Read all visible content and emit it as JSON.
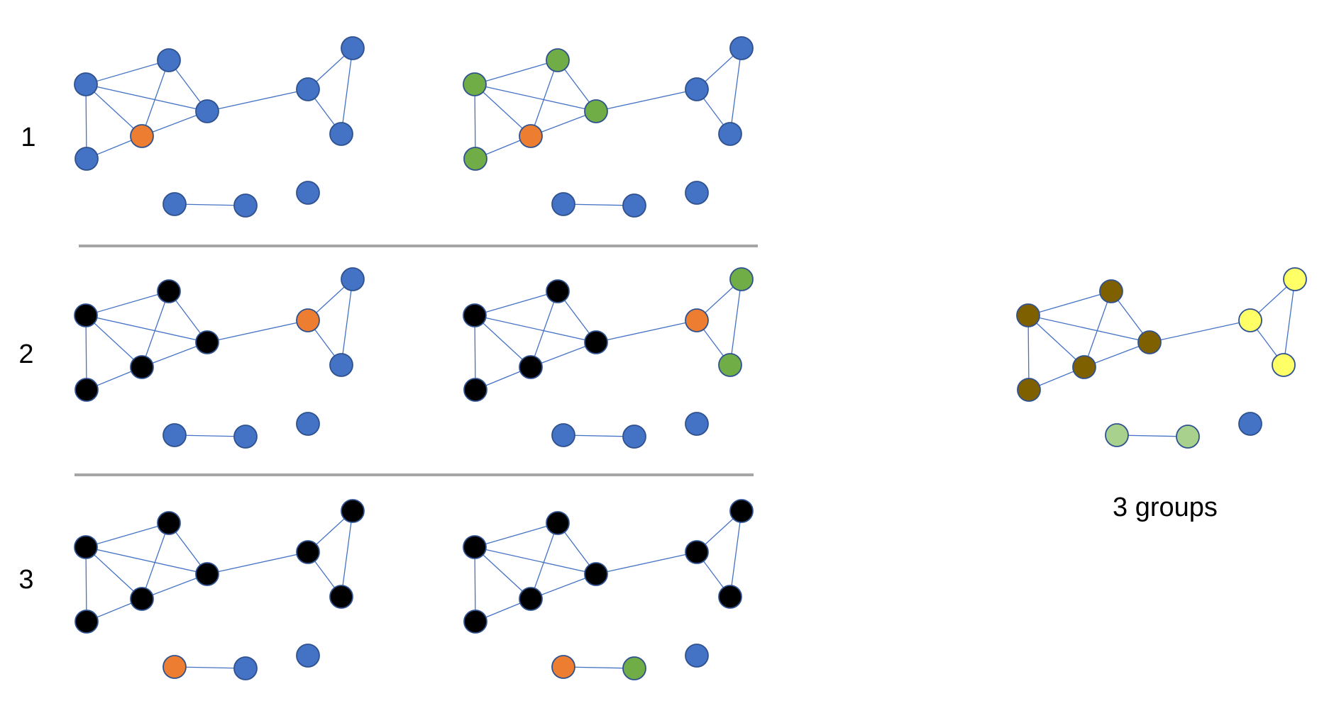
{
  "colors": {
    "blue": "#4472c4",
    "orange": "#ed7d31",
    "green": "#70ad47",
    "black": "#000000",
    "brown": "#7f6000",
    "yellow": "#ffff66",
    "lightgreen": "#a9d18e",
    "divider": "#a5a5a5"
  },
  "rows": [
    {
      "label": "1",
      "panels": [
        {
          "colors": [
            "blue",
            "blue",
            "blue",
            "orange",
            "blue",
            "blue",
            "blue",
            "blue",
            "blue",
            "blue",
            "blue"
          ]
        },
        {
          "colors": [
            "green",
            "green",
            "green",
            "orange",
            "green",
            "blue",
            "blue",
            "blue",
            "blue",
            "blue",
            "blue"
          ]
        }
      ]
    },
    {
      "label": "2",
      "panels": [
        {
          "colors": [
            "black",
            "black",
            "black",
            "black",
            "black",
            "orange",
            "blue",
            "blue",
            "blue",
            "blue",
            "blue"
          ]
        },
        {
          "colors": [
            "black",
            "black",
            "black",
            "black",
            "black",
            "orange",
            "green",
            "green",
            "blue",
            "blue",
            "blue"
          ]
        }
      ]
    },
    {
      "label": "3",
      "panels": [
        {
          "colors": [
            "black",
            "black",
            "black",
            "black",
            "black",
            "black",
            "black",
            "black",
            "orange",
            "blue",
            "blue"
          ]
        },
        {
          "colors": [
            "black",
            "black",
            "black",
            "black",
            "black",
            "black",
            "black",
            "black",
            "orange",
            "green",
            "blue"
          ]
        }
      ]
    }
  ],
  "result": {
    "colors": [
      "brown",
      "brown",
      "brown",
      "brown",
      "brown",
      "yellow",
      "yellow",
      "yellow",
      "lightgreen",
      "lightgreen",
      "blue"
    ],
    "caption": "3 groups"
  }
}
